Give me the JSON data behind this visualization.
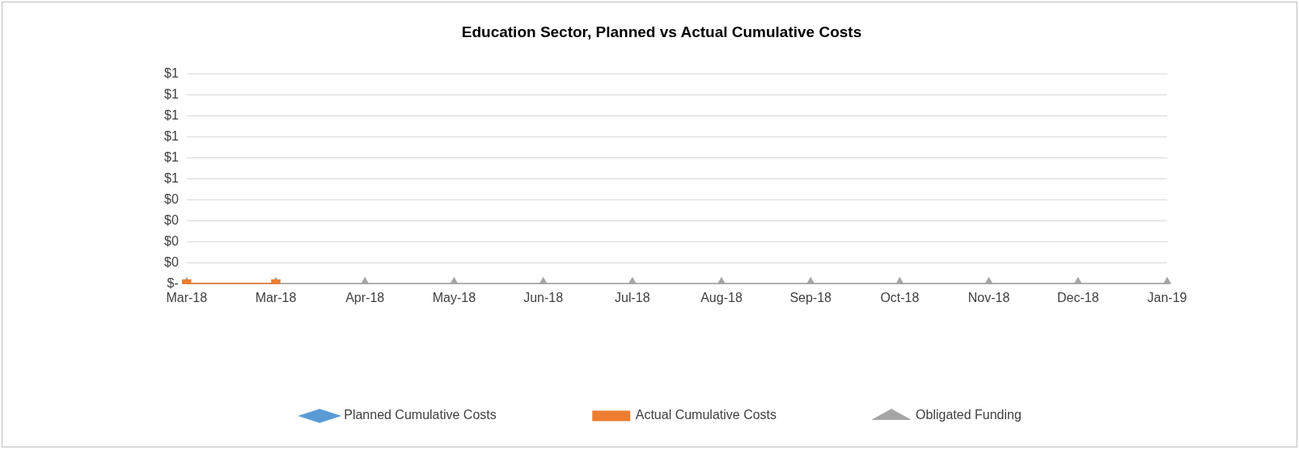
{
  "chart_data": {
    "type": "line",
    "title": "Education Sector, Planned vs Actual Cumulative Costs",
    "categories": [
      "Mar-18",
      "Mar-18",
      "Apr-18",
      "May-18",
      "Jun-18",
      "Jul-18",
      "Aug-18",
      "Sep-18",
      "Oct-18",
      "Nov-18",
      "Dec-18",
      "Jan-19"
    ],
    "series": [
      {
        "name": "Planned Cumulative Costs",
        "color": "#5b9bd5",
        "marker": "diamond",
        "values": [
          null,
          null,
          null,
          null,
          null,
          null,
          null,
          null,
          null,
          null,
          null,
          null
        ]
      },
      {
        "name": "Actual Cumulative Costs",
        "color": "#ed7d31",
        "marker": "square",
        "values": [
          0,
          0,
          null,
          null,
          null,
          null,
          null,
          null,
          null,
          null,
          null,
          null
        ]
      },
      {
        "name": "Obligated Funding",
        "color": "#a5a5a5",
        "marker": "triangle",
        "values": [
          0,
          0,
          0,
          0,
          0,
          0,
          0,
          0,
          0,
          0,
          0,
          0
        ]
      }
    ],
    "ylim": [
      0,
      1
    ],
    "yticks": [
      {
        "value": 0,
        "label": "$-"
      },
      {
        "value": 0.1,
        "label": "$0"
      },
      {
        "value": 0.2,
        "label": "$0"
      },
      {
        "value": 0.3,
        "label": "$0"
      },
      {
        "value": 0.4,
        "label": "$0"
      },
      {
        "value": 0.5,
        "label": "$1"
      },
      {
        "value": 0.6,
        "label": "$1"
      },
      {
        "value": 0.7,
        "label": "$1"
      },
      {
        "value": 0.8,
        "label": "$1"
      },
      {
        "value": 0.9,
        "label": "$1"
      },
      {
        "value": 1,
        "label": "$1"
      }
    ],
    "grid": "y",
    "legend": "bottom"
  }
}
